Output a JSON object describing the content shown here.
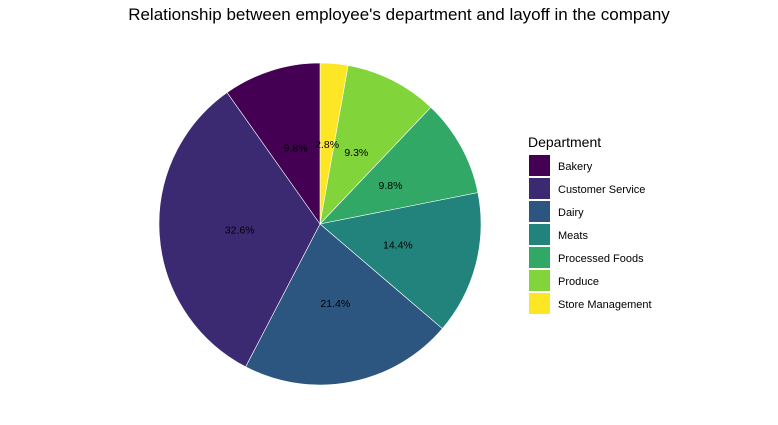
{
  "chart_data": {
    "type": "pie",
    "title": "Relationship between employee's department and layoff in the company",
    "legend_title": "Department",
    "legend_position": "right",
    "categories": [
      "Bakery",
      "Customer Service",
      "Dairy",
      "Meats",
      "Processed Foods",
      "Produce",
      "Store Management"
    ],
    "values": [
      9.8,
      32.6,
      21.4,
      14.4,
      9.8,
      9.3,
      2.8
    ],
    "labels": [
      "9.8%",
      "32.6%",
      "21.4%",
      "14.4%",
      "9.8%",
      "9.3%",
      "2.8%"
    ],
    "colors": [
      "#440154",
      "#3B2A72",
      "#2C5680",
      "#21837C",
      "#31A866",
      "#81D43A",
      "#FDE725"
    ],
    "direction": "clockwise",
    "start": "12 o'clock",
    "slice_order": [
      "Store Management",
      "Produce",
      "Processed Foods",
      "Meats",
      "Dairy",
      "Customer Service",
      "Bakery"
    ]
  }
}
